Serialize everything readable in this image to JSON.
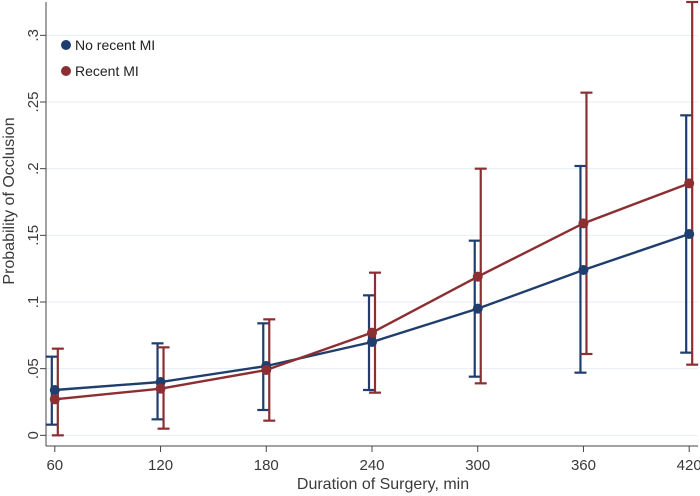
{
  "chart_data": {
    "type": "line",
    "title": "",
    "xlabel": "Duration of Surgery, min",
    "ylabel": "Probability of Occlusion",
    "x": [
      60,
      120,
      180,
      240,
      300,
      360,
      420
    ],
    "xticks": [
      "60",
      "120",
      "180",
      "240",
      "300",
      "360",
      "420"
    ],
    "yticks": [
      {
        "value": 0,
        "label": "0"
      },
      {
        "value": 0.05,
        "label": ".05"
      },
      {
        "value": 0.1,
        "label": ".1"
      },
      {
        "value": 0.15,
        "label": ".15"
      },
      {
        "value": 0.2,
        "label": ".2"
      },
      {
        "value": 0.25,
        "label": ".25"
      },
      {
        "value": 0.3,
        "label": ".3"
      }
    ],
    "xlim": [
      55,
      425
    ],
    "ylim": [
      -0.008,
      0.325
    ],
    "grid": true,
    "legend_position": "top-left",
    "series": [
      {
        "name": "No recent MI",
        "color": "#1f3e6e",
        "values": [
          0.034,
          0.04,
          0.052,
          0.07,
          0.095,
          0.124,
          0.151
        ],
        "lower": [
          0.008,
          0.012,
          0.019,
          0.034,
          0.044,
          0.047,
          0.062
        ],
        "upper": [
          0.059,
          0.069,
          0.084,
          0.105,
          0.146,
          0.202,
          0.24
        ]
      },
      {
        "name": "Recent MI",
        "color": "#8b2f33",
        "values": [
          0.027,
          0.035,
          0.049,
          0.077,
          0.119,
          0.159,
          0.189
        ],
        "lower": [
          0.0,
          0.005,
          0.011,
          0.032,
          0.039,
          0.061,
          0.053
        ],
        "upper": [
          0.065,
          0.066,
          0.087,
          0.122,
          0.2,
          0.257,
          0.325
        ]
      }
    ]
  }
}
